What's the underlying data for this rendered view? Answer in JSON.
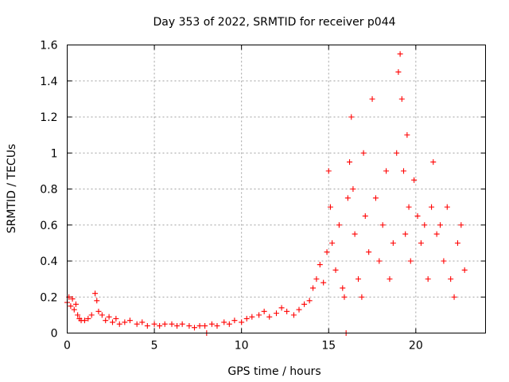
{
  "chart_data": {
    "type": "scatter",
    "title": "Day 353 of 2022, SRMTID for receiver p044",
    "xlabel": "GPS time / hours",
    "ylabel": "SRMTID / TECUs",
    "xlim": [
      0,
      24
    ],
    "ylim": [
      0,
      1.6
    ],
    "grid": true,
    "marker": "+",
    "color": "#ff0000",
    "x_ticks": [
      0,
      5,
      10,
      15,
      20
    ],
    "x_tick_labels": [
      "0",
      "5",
      "10",
      "15",
      "20"
    ],
    "y_ticks": [
      0,
      0.2,
      0.4,
      0.6,
      0.8,
      1.0,
      1.2,
      1.4,
      1.6
    ],
    "y_tick_labels": [
      "0",
      "0.2",
      "0.4",
      "0.6",
      "0.8",
      "1",
      "1.2",
      "1.4",
      "1.6"
    ],
    "series": [
      {
        "name": "p044",
        "x": [
          0.0,
          0.1,
          0.2,
          0.3,
          0.4,
          0.5,
          0.6,
          0.7,
          0.8,
          1.0,
          1.2,
          1.4,
          1.6,
          1.7,
          1.8,
          2.0,
          2.2,
          2.4,
          2.6,
          2.8,
          3.0,
          3.3,
          3.6,
          4.0,
          4.3,
          4.6,
          5.0,
          5.3,
          5.6,
          6.0,
          6.3,
          6.6,
          7.0,
          7.3,
          7.6,
          7.9,
          8.0,
          8.3,
          8.6,
          9.0,
          9.3,
          9.6,
          10.0,
          10.3,
          10.6,
          11.0,
          11.3,
          11.6,
          12.0,
          12.3,
          12.6,
          13.0,
          13.3,
          13.6,
          13.9,
          14.1,
          14.3,
          14.5,
          14.7,
          14.9,
          15.0,
          15.1,
          15.2,
          15.4,
          15.6,
          15.8,
          15.9,
          16.0,
          16.1,
          16.2,
          16.3,
          16.4,
          16.5,
          16.7,
          16.9,
          17.0,
          17.1,
          17.3,
          17.5,
          17.7,
          17.9,
          18.1,
          18.3,
          18.5,
          18.7,
          18.9,
          19.0,
          19.1,
          19.2,
          19.3,
          19.4,
          19.5,
          19.6,
          19.7,
          19.9,
          20.1,
          20.3,
          20.5,
          20.7,
          20.9,
          21.0,
          21.2,
          21.4,
          21.6,
          21.8,
          22.0,
          22.2,
          22.4,
          22.6,
          22.8
        ],
        "y": [
          0.17,
          0.2,
          0.15,
          0.19,
          0.13,
          0.16,
          0.1,
          0.08,
          0.07,
          0.07,
          0.08,
          0.1,
          0.22,
          0.18,
          0.12,
          0.1,
          0.07,
          0.09,
          0.06,
          0.08,
          0.05,
          0.06,
          0.07,
          0.05,
          0.06,
          0.04,
          0.05,
          0.04,
          0.05,
          0.05,
          0.04,
          0.05,
          0.04,
          0.03,
          0.04,
          0.04,
          0.0,
          0.05,
          0.04,
          0.06,
          0.05,
          0.07,
          0.06,
          0.08,
          0.09,
          0.1,
          0.12,
          0.09,
          0.11,
          0.14,
          0.12,
          0.1,
          0.13,
          0.16,
          0.18,
          0.25,
          0.3,
          0.38,
          0.28,
          0.45,
          0.9,
          0.7,
          0.5,
          0.35,
          0.6,
          0.25,
          0.2,
          0.0,
          0.75,
          0.95,
          1.2,
          0.8,
          0.55,
          0.3,
          0.2,
          1.0,
          0.65,
          0.45,
          1.3,
          0.75,
          0.4,
          0.6,
          0.9,
          0.3,
          0.5,
          1.0,
          1.45,
          1.55,
          1.3,
          0.9,
          0.55,
          1.1,
          0.7,
          0.4,
          0.85,
          0.65,
          0.5,
          0.6,
          0.3,
          0.7,
          0.95,
          0.55,
          0.6,
          0.4,
          0.7,
          0.3,
          0.2,
          0.5,
          0.6,
          0.35
        ]
      }
    ]
  }
}
